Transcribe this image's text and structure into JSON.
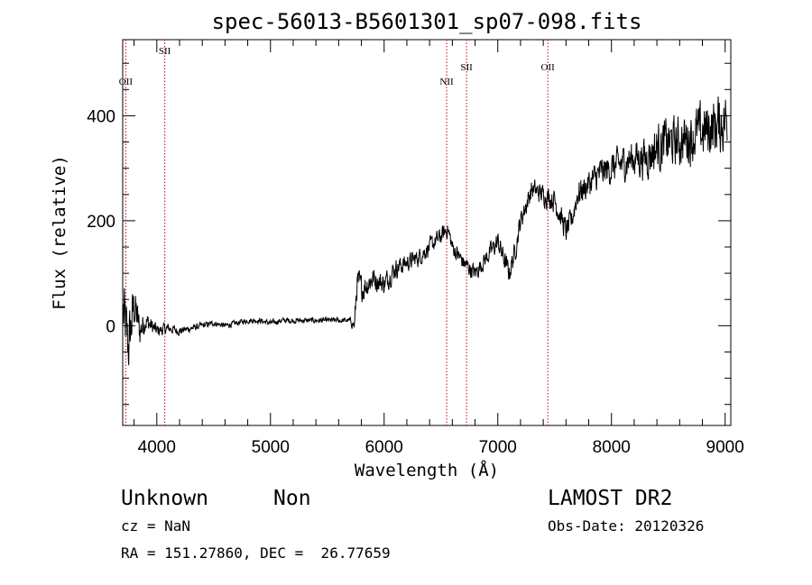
{
  "chart_data": {
    "type": "line",
    "title": "spec-56013-B5601301_sp07-098.fits",
    "xlabel": "Wavelength (Å)",
    "ylabel": "Flux (relative)",
    "xlim": [
      3700,
      9050
    ],
    "ylim": [
      -190,
      545
    ],
    "xticks": [
      4000,
      5000,
      6000,
      7000,
      8000,
      9000
    ],
    "yticks": [
      0,
      200,
      400
    ],
    "grid": false,
    "series": [
      {
        "x": [
          3700,
          3750,
          3800,
          3850,
          3900,
          3950,
          4000,
          4100,
          4200,
          4300,
          4400,
          4500,
          4600,
          4700,
          4800,
          4900,
          5000,
          5100,
          5200,
          5300,
          5400,
          5500,
          5600,
          5700,
          5740,
          5760,
          5800,
          5900,
          6000,
          6100,
          6200,
          6300,
          6400,
          6500,
          6560,
          6600,
          6700,
          6800,
          6900,
          7000,
          7100,
          7150,
          7200,
          7250,
          7300,
          7400,
          7500,
          7600,
          7650,
          7700,
          7800,
          7900,
          8000,
          8100,
          8200,
          8300,
          8400,
          8500,
          8600,
          8700,
          8800,
          8900,
          9000
        ],
        "values": [
          30,
          -40,
          40,
          -10,
          10,
          0,
          -10,
          -5,
          -10,
          -5,
          0,
          5,
          0,
          5,
          10,
          10,
          5,
          10,
          10,
          10,
          10,
          10,
          10,
          10,
          0,
          80,
          70,
          90,
          80,
          110,
          120,
          130,
          150,
          170,
          185,
          150,
          120,
          100,
          130,
          160,
          100,
          140,
          200,
          230,
          260,
          250,
          240,
          180,
          200,
          250,
          270,
          290,
          300,
          310,
          320,
          320,
          340,
          350,
          350,
          360,
          370,
          380,
          390
        ],
        "noise": [
          110,
          90,
          70,
          50,
          30,
          25,
          20,
          15,
          12,
          10,
          10,
          8,
          8,
          8,
          8,
          8,
          8,
          8,
          8,
          8,
          8,
          8,
          8,
          8,
          25,
          50,
          40,
          35,
          30,
          30,
          25,
          25,
          25,
          25,
          25,
          25,
          25,
          25,
          25,
          30,
          30,
          30,
          30,
          30,
          30,
          30,
          35,
          35,
          35,
          40,
          40,
          45,
          45,
          50,
          55,
          60,
          70,
          70,
          70,
          75,
          80,
          85,
          90
        ]
      }
    ],
    "lines": [
      {
        "name": "OII",
        "wavelength": 3727,
        "label": "OII",
        "label_level": 1
      },
      {
        "name": "SII",
        "wavelength": 4070,
        "label": "SII",
        "label_level": 0
      },
      {
        "name": "NII",
        "wavelength": 6550,
        "label": "NII",
        "label_level": 1
      },
      {
        "name": "SII",
        "wavelength": 6725,
        "label": "SII",
        "label_level": 0
      },
      {
        "name": "OII",
        "wavelength": 7440,
        "label": "OII",
        "label_level": 0
      }
    ],
    "line_color": "#cc0000"
  },
  "info": {
    "class": "Unknown",
    "subclass": "Non",
    "survey": "LAMOST DR2",
    "cz": "cz = NaN",
    "coords": "RA = 151.27860, DEC =  26.77659",
    "obs_date": "Obs-Date: 20120326"
  }
}
